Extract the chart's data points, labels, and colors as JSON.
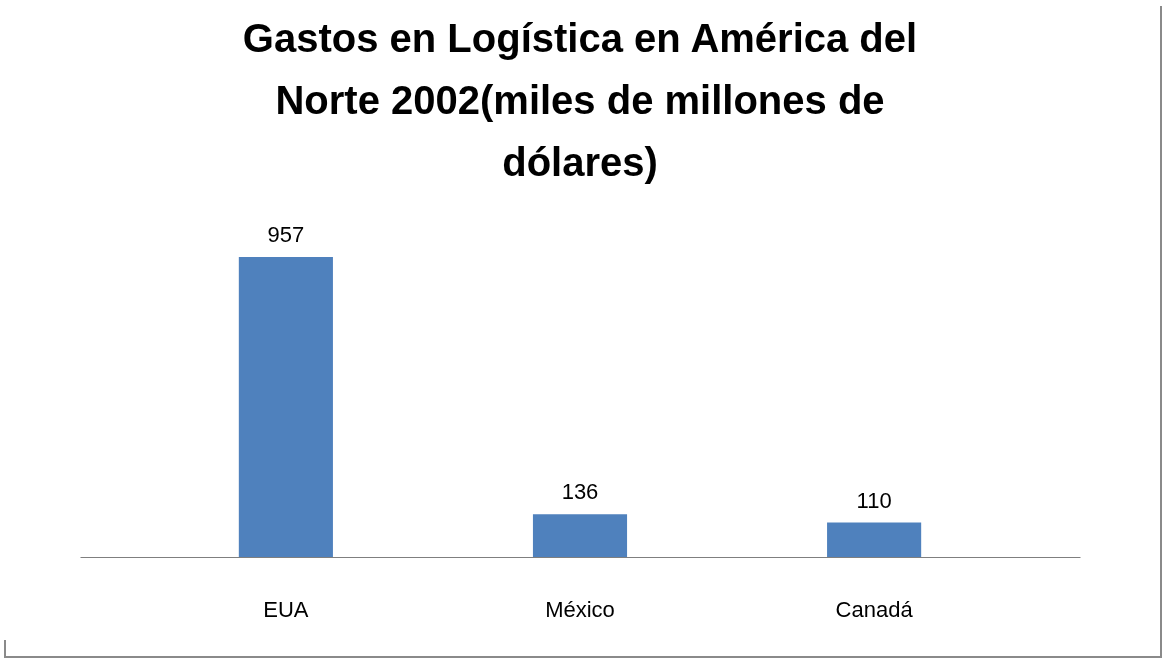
{
  "chart_data": {
    "type": "bar",
    "title": "Gastos en Logística en América del Norte 2002(miles de millones de dólares)",
    "categories": [
      "EUA",
      "México",
      "Canadá"
    ],
    "values": [
      957,
      136,
      110
    ],
    "color": "#4f81bd",
    "data_labels": true
  }
}
